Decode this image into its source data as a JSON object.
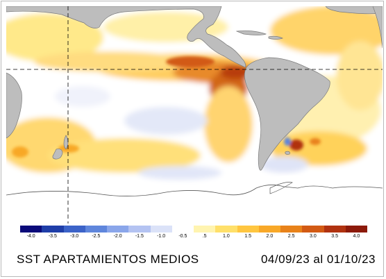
{
  "map": {
    "land_color": "#bdbdbd",
    "ocean_color": "#ffffff",
    "guide_line_color": "#000000"
  },
  "legend": {
    "ticks": [
      "-4.0",
      "-3.5",
      "-3.0",
      "-2.5",
      "-2.0",
      "-1.5",
      "-1.0",
      "-0.5",
      ".5",
      "1.0",
      "1.5",
      "2.0",
      "2.5",
      "3.0",
      "3.5",
      "4.0"
    ],
    "colors": [
      "#0a0a7a",
      "#1f3ea8",
      "#3c63c8",
      "#5f86dc",
      "#8aa6ea",
      "#b4c3f2",
      "#dbe2f8",
      "#ffffff",
      "#fff4b0",
      "#ffe06a",
      "#ffc640",
      "#f8a828",
      "#e8821a",
      "#d25a14",
      "#b03210",
      "#8c1a0a"
    ]
  },
  "caption": {
    "title": "SST APARTAMIENTOS MEDIOS",
    "dates": "04/09/23 al 01/10/23"
  }
}
